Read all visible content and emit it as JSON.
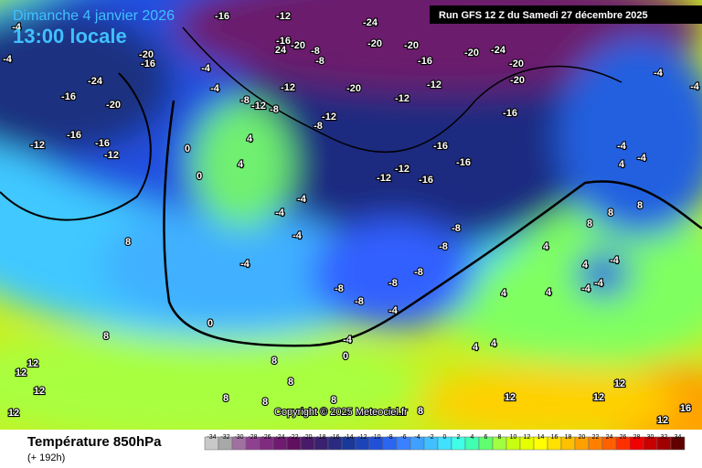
{
  "header": {
    "date": "Dimanche 4 janvier 2026",
    "time": "13:00 locale",
    "run": "Run GFS 12 Z du Samedi 27 décembre 2025"
  },
  "copyright": "Copyright © 2025 Meteociel.fr",
  "footer": {
    "title": "Température 850hPa",
    "lead": "(+ 192h)"
  },
  "legend": {
    "ticks": [
      -34,
      -32,
      -30,
      -28,
      -26,
      -24,
      -22,
      -20,
      -18,
      -16,
      -14,
      -12,
      -10,
      -8,
      -6,
      -4,
      -2,
      0,
      2,
      4,
      6,
      8,
      10,
      12,
      14,
      16,
      18,
      20,
      22,
      24,
      26,
      28,
      30,
      32,
      34
    ],
    "colors": [
      "#c8c8c8",
      "#a8a8a8",
      "#a070a0",
      "#904090",
      "#802a80",
      "#701a70",
      "#601060",
      "#4a1a6a",
      "#3a2070",
      "#2a2a80",
      "#1a3898",
      "#1c44b8",
      "#2050d8",
      "#2a66f0",
      "#3a80ff",
      "#40a0ff",
      "#40c0ff",
      "#40e0ff",
      "#40ffe8",
      "#40ffb0",
      "#60ff70",
      "#a0ff40",
      "#c8ff10",
      "#e6ff00",
      "#ffff00",
      "#ffe000",
      "#ffc000",
      "#ffa000",
      "#ff8000",
      "#ff6000",
      "#ff3000",
      "#f00000",
      "#c80000",
      "#a00000",
      "#600000"
    ]
  },
  "contour_labels": [
    -16,
    -12,
    -24,
    -20,
    -20,
    -20,
    -24,
    -20,
    -20,
    -20,
    -12,
    -12,
    -16,
    -16,
    -8,
    -8,
    -12,
    -12,
    -8,
    -8,
    -12,
    -8,
    -4,
    -4,
    0,
    0,
    4,
    4,
    -4,
    -4,
    -4,
    -4,
    0,
    -20,
    -16,
    -24,
    -20,
    -16,
    -16,
    -12,
    -16,
    -12,
    -4,
    -4,
    -16,
    -16,
    -12,
    -12,
    -16,
    -8,
    -8,
    -8,
    -8,
    -8,
    -8,
    -4,
    -4,
    0,
    -16,
    24,
    -20,
    8,
    8,
    12,
    12,
    12,
    12,
    8,
    8,
    4,
    12,
    12,
    12,
    12,
    16,
    4,
    8,
    8,
    8,
    4,
    4,
    4,
    -4,
    -4,
    -4,
    -4,
    -4,
    -4,
    -4,
    4,
    4,
    8,
    8,
    8,
    8
  ]
}
